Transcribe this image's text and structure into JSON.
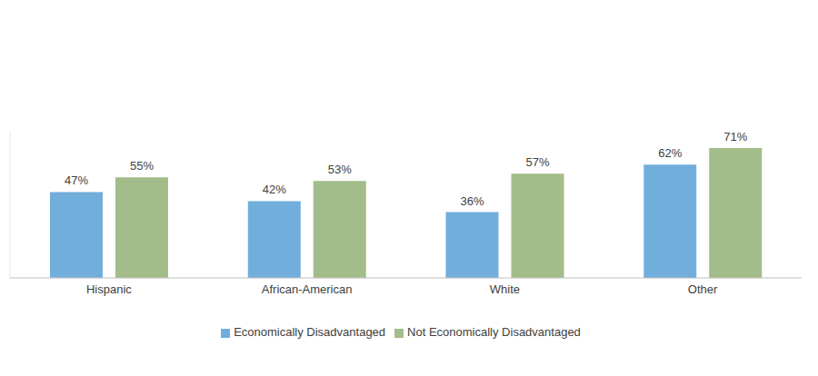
{
  "chart_data": {
    "type": "bar",
    "categories": [
      "Hispanic",
      "African-American",
      "White",
      "Other"
    ],
    "series": [
      {
        "name": "Economically Disadvantaged",
        "color": "#71AEDC",
        "values": [
          47,
          42,
          36,
          62
        ],
        "value_labels": [
          "47%",
          "42%",
          "36%",
          "62%"
        ]
      },
      {
        "name": "Not Economically Disadvantaged",
        "color": "#A2BC8A",
        "values": [
          55,
          53,
          57,
          71
        ],
        "value_labels": [
          "55%",
          "53%",
          "57%",
          "71%"
        ]
      }
    ],
    "ylim": [
      0,
      80
    ],
    "data_labels": true,
    "tick_labels": "x",
    "grid": false,
    "legend": "bottom"
  }
}
